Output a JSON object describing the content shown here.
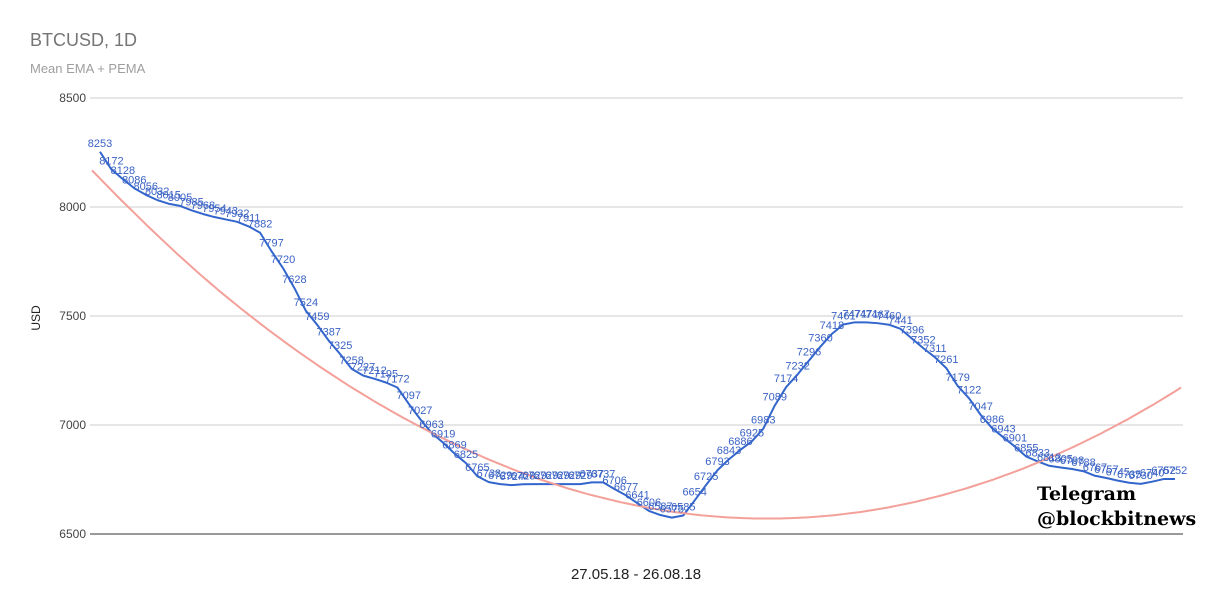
{
  "chart_data": {
    "type": "line",
    "title": "BTCUSD, 1D",
    "subtitle": "Mean EMA + PEMA",
    "xlabel": "27.05.18 - 26.08.18",
    "ylabel": "USD",
    "ylim": [
      6500,
      8500
    ],
    "yticks": [
      "8500",
      "8000",
      "7500",
      "7000",
      "6500"
    ],
    "grid": true,
    "series": [
      {
        "color": "#3366cc",
        "labels": [
          "8253",
          "8172",
          "8128",
          "8086",
          "8056",
          "8032",
          "8015",
          "8005",
          "7985",
          "7968",
          "7954",
          "7943",
          "7932",
          "7911",
          "7882",
          "7797",
          "7720",
          "7628",
          "7524",
          "7459",
          "7387",
          "7325",
          "7258",
          "7227",
          "7212",
          "7195",
          "7172",
          "7097",
          "7027",
          "6963",
          "6919",
          "6869",
          "6825",
          "6765",
          "6738",
          "6729",
          "6724",
          "6728",
          "6729",
          "6729",
          "6729",
          "6729",
          "6729",
          "6737",
          "6737",
          "6706",
          "6677",
          "6641",
          "6606",
          "6587",
          "6575",
          "6585",
          "6654",
          "6725",
          "6793",
          "6843",
          "6886",
          "6925",
          "6983",
          "7089",
          "7174",
          "7232",
          "7296",
          "7360",
          "7418",
          "7461",
          "7471",
          "7471",
          "7467",
          "7460",
          "7441",
          "7396",
          "7352",
          "7311",
          "7261",
          "7179",
          "7122",
          "7047",
          "6986",
          "6943",
          "6901",
          "6855",
          "6833",
          "6813",
          "6805",
          "6798",
          "6788",
          "6767",
          "6757",
          "6745",
          "6735",
          "6730",
          "6740",
          "6752",
          "6752"
        ],
        "values": [
          8253,
          8172,
          8128,
          8086,
          8056,
          8032,
          8015,
          8005,
          7985,
          7968,
          7954,
          7943,
          7932,
          7911,
          7882,
          7797,
          7720,
          7628,
          7524,
          7459,
          7387,
          7325,
          7258,
          7227,
          7212,
          7195,
          7172,
          7097,
          7027,
          6963,
          6919,
          6869,
          6825,
          6765,
          6738,
          6729,
          6724,
          6728,
          6729,
          6729,
          6729,
          6729,
          6729,
          6737,
          6737,
          6706,
          6677,
          6641,
          6606,
          6587,
          6575,
          6585,
          6654,
          6725,
          6793,
          6843,
          6886,
          6925,
          6983,
          7089,
          7174,
          7232,
          7296,
          7360,
          7418,
          7461,
          7471,
          7471,
          7467,
          7460,
          7441,
          7396,
          7352,
          7311,
          7261,
          7179,
          7122,
          7047,
          6986,
          6943,
          6901,
          6855,
          6833,
          6813,
          6805,
          6798,
          6788,
          6767,
          6757,
          6745,
          6735,
          6730,
          6740,
          6752,
          6752
        ]
      },
      {
        "color": "#f4a09a",
        "values": [
          8168,
          8143,
          8118,
          8093,
          8068,
          8043,
          8019,
          7995,
          7971,
          7947,
          7923,
          7899,
          7876,
          7853,
          7830,
          7807,
          7784,
          7762,
          7740,
          7718,
          7696,
          7675,
          7654,
          7633,
          7612,
          7592,
          7572,
          7552,
          7532,
          7513,
          7494,
          7475,
          7456,
          7437,
          7419,
          7401,
          7383,
          7365,
          7347,
          7330,
          7313,
          7296,
          7279,
          7262,
          7246,
          7230,
          7214,
          7198,
          7182,
          7167,
          7152,
          7137,
          7122,
          7107,
          7093,
          7079,
          7065,
          7051,
          7037,
          7024,
          7011,
          6998,
          6985,
          6972,
          6960,
          6948,
          6936,
          6924,
          6912,
          6900,
          6889,
          6878,
          6867,
          6856,
          6845,
          6835,
          6825,
          6815,
          6805,
          6795,
          6786,
          6777,
          6768,
          6759,
          6750,
          6742,
          6734,
          6726,
          6718,
          6710,
          6703,
          6696,
          6689,
          6682,
          6676,
          6670,
          6664,
          6658,
          6652,
          6646,
          6641,
          6636,
          6631,
          6626,
          6621,
          6617,
          6613,
          6609,
          6605,
          6601,
          6598,
          6595,
          6592,
          6589,
          6586,
          6584,
          6582,
          6580,
          6578,
          6576,
          6575,
          6574,
          6573,
          6572,
          6571,
          6571,
          6571,
          6571,
          6571,
          6571,
          6572,
          6573,
          6574,
          6575,
          6576,
          6578,
          6580,
          6582,
          6584,
          6586,
          6589,
          6592,
          6595,
          6598,
          6601,
          6605,
          6609,
          6613,
          6617,
          6621,
          6626,
          6631,
          6636,
          6641,
          6646,
          6652,
          6658,
          6664,
          6670,
          6676,
          6683,
          6690,
          6697,
          6704,
          6711,
          6719,
          6727,
          6735,
          6743,
          6751,
          6760,
          6769,
          6778,
          6787,
          6796,
          6806,
          6816,
          6826,
          6836,
          6846,
          6857,
          6868,
          6879,
          6890,
          6901,
          6913,
          6925,
          6937,
          6949,
          6961,
          6974,
          6987,
          7000,
          7013,
          7026,
          7040,
          7054,
          7068,
          7082,
          7096,
          7111,
          7126,
          7141,
          7156,
          7172
        ]
      }
    ]
  },
  "watermark": {
    "line1": "Telegram",
    "line2": "@blockbitnews"
  }
}
